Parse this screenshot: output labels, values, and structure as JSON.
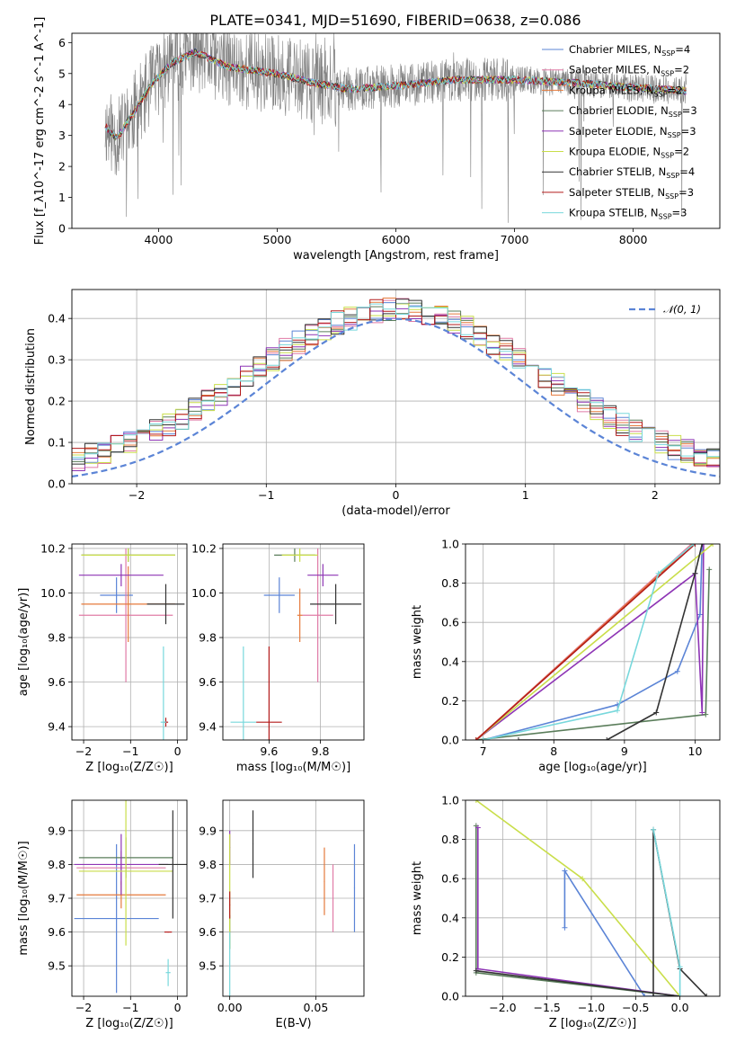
{
  "figure": {
    "title": "PLATE=0341, MJD=51690, FIBERID=0638, z=0.086",
    "colors": {
      "Chabrier MILES": "#5b84d6",
      "Salpeter MILES": "#e07ba6",
      "Kroupa MILES": "#e57a3c",
      "Chabrier ELODIE": "#5a7d5a",
      "Salpeter ELODIE": "#8e35b5",
      "Kroupa ELODIE": "#c9de4a",
      "Chabrier STELIB": "#333333",
      "Salpeter STELIB": "#b31b1b",
      "Kroupa STELIB": "#78d8dc",
      "data": "#808080"
    }
  },
  "chart_data": [
    {
      "type": "line",
      "id": "spectrum",
      "xlabel": "wavelength [Angstrom, rest frame]",
      "ylabel": "Flux [f_λ10^-17 erg cm^-2 s^-1 A^-1]",
      "xlim": [
        3270,
        8730
      ],
      "ylim": [
        0,
        6.3
      ],
      "xticks": [
        4000,
        5000,
        6000,
        7000,
        8000
      ],
      "yticks": [
        0,
        1,
        2,
        3,
        4,
        5,
        6
      ],
      "legend": [
        {
          "name": "Chabrier MILES",
          "nssp": 4
        },
        {
          "name": "Salpeter MILES",
          "nssp": 2
        },
        {
          "name": "Kroupa MILES",
          "nssp": 2
        },
        {
          "name": "Chabrier ELODIE",
          "nssp": 3
        },
        {
          "name": "Salpeter ELODIE",
          "nssp": 3
        },
        {
          "name": "Kroupa ELODIE",
          "nssp": 2
        },
        {
          "name": "Chabrier STELIB",
          "nssp": 4
        },
        {
          "name": "Salpeter STELIB",
          "nssp": 3
        },
        {
          "name": "Kroupa STELIB",
          "nssp": 3
        }
      ],
      "legend_loc": "upper right",
      "continuum": {
        "x": [
          3550,
          3650,
          3800,
          3950,
          4100,
          4300,
          4600,
          5000,
          5300,
          5600,
          6000,
          6500,
          7000,
          7500,
          8000,
          8400,
          8500
        ],
        "y": [
          3.3,
          2.9,
          3.8,
          4.7,
          5.3,
          5.7,
          5.2,
          5.0,
          4.7,
          4.5,
          4.6,
          4.8,
          4.8,
          4.7,
          4.55,
          4.45,
          4.4
        ]
      }
    },
    {
      "type": "line",
      "id": "residuals",
      "xlabel": "(data-model)/error",
      "ylabel": "Normed distribution",
      "xlim": [
        -2.5,
        2.5
      ],
      "ylim": [
        0,
        0.47
      ],
      "xticks": [
        -2,
        -1,
        0,
        1,
        2
      ],
      "yticks": [
        0.0,
        0.1,
        0.2,
        0.3,
        0.4
      ],
      "legend": [
        "𝒩(0, 1)"
      ],
      "legend_loc": "upper right",
      "gaussian": {
        "mean": 0,
        "sigma": 1
      }
    },
    {
      "type": "scatter",
      "id": "age_vs_Z",
      "xlabel": "Z [log₁₀(Z/Z☉)]",
      "ylabel": "age  [log₁₀(age/yr)]",
      "xlim": [
        -2.25,
        0.2
      ],
      "ylim": [
        9.34,
        10.22
      ],
      "xticks": [
        -2,
        -1,
        0
      ],
      "yticks": [
        9.4,
        9.6,
        9.8,
        10.0,
        10.2
      ],
      "points": [
        {
          "model": "Chabrier MILES",
          "x": -1.3,
          "xerr": 0.35,
          "y": 9.99,
          "yerr": 0.08
        },
        {
          "model": "Salpeter MILES",
          "x": -1.1,
          "xerr": 1.0,
          "y": 9.9,
          "yerr": 0.3
        },
        {
          "model": "Kroupa MILES",
          "x": -1.05,
          "xerr": 1.0,
          "y": 9.95,
          "yerr": 0.17
        },
        {
          "model": "Chabrier ELODIE",
          "x": -1.05,
          "xerr": 1.0,
          "y": 10.17,
          "yerr": 0.03
        },
        {
          "model": "Salpeter ELODIE",
          "x": -1.2,
          "xerr": 0.9,
          "y": 10.08,
          "yerr": 0.05
        },
        {
          "model": "Kroupa ELODIE",
          "x": -1.05,
          "xerr": 1.0,
          "y": 10.17,
          "yerr": 0.03
        },
        {
          "model": "Chabrier STELIB",
          "x": -0.25,
          "xerr": 0.4,
          "y": 9.95,
          "yerr": 0.09
        },
        {
          "model": "Salpeter STELIB",
          "x": -0.25,
          "xerr": 0.05,
          "y": 9.42,
          "yerr": 0.02
        },
        {
          "model": "Kroupa STELIB",
          "x": -0.3,
          "xerr": 0.06,
          "y": 9.42,
          "yerr": 0.34
        }
      ]
    },
    {
      "type": "scatter",
      "id": "age_vs_mass",
      "xlabel": "mass [log₁₀(M/M☉)]",
      "ylabel": "",
      "xlim": [
        9.42,
        9.97
      ],
      "ylim": [
        9.34,
        10.22
      ],
      "xticks": [
        9.6,
        9.8
      ],
      "yticks": [
        9.4,
        9.6,
        9.8,
        10.0,
        10.2
      ],
      "points": [
        {
          "model": "Chabrier MILES",
          "x": 9.64,
          "xerr": 0.06,
          "y": 9.99,
          "yerr": 0.08
        },
        {
          "model": "Salpeter MILES",
          "x": 9.79,
          "xerr": 0.06,
          "y": 9.9,
          "yerr": 0.3
        },
        {
          "model": "Kroupa MILES",
          "x": 9.72,
          "xerr": 0.01,
          "y": 9.9,
          "yerr": 0.12
        },
        {
          "model": "Chabrier ELODIE",
          "x": 9.7,
          "xerr": 0.08,
          "y": 10.17,
          "yerr": 0.03
        },
        {
          "model": "Salpeter ELODIE",
          "x": 9.81,
          "xerr": 0.06,
          "y": 10.08,
          "yerr": 0.05
        },
        {
          "model": "Kroupa ELODIE",
          "x": 9.72,
          "xerr": 0.07,
          "y": 10.17,
          "yerr": 0.03
        },
        {
          "model": "Chabrier STELIB",
          "x": 9.86,
          "xerr": 0.1,
          "y": 9.95,
          "yerr": 0.09
        },
        {
          "model": "Salpeter STELIB",
          "x": 9.6,
          "xerr": 0.05,
          "y": 9.42,
          "yerr": 0.34
        },
        {
          "model": "Kroupa STELIB",
          "x": 9.5,
          "xerr": 0.05,
          "y": 9.42,
          "yerr": 0.34
        }
      ]
    },
    {
      "type": "line",
      "id": "cumulative_mass_weight_age",
      "xlabel": "age  [log₁₀(age/yr)]",
      "ylabel": "mass weight",
      "xlim": [
        6.75,
        10.35
      ],
      "ylim": [
        0,
        1
      ],
      "xticks": [
        7,
        8,
        9,
        10
      ],
      "yticks": [
        0.0,
        0.2,
        0.4,
        0.6,
        0.8,
        1.0
      ],
      "series": [
        {
          "name": "Chabrier MILES",
          "x": [
            7.0,
            8.9,
            9.75,
            10.07,
            10.1
          ],
          "y": [
            0.0,
            0.18,
            0.35,
            0.64,
            1.0
          ]
        },
        {
          "name": "Salpeter MILES",
          "x": [
            6.9,
            9.95
          ],
          "y": [
            0.0,
            1.0
          ]
        },
        {
          "name": "Kroupa MILES",
          "x": [
            6.9,
            9.97
          ],
          "y": [
            0.0,
            1.0
          ]
        },
        {
          "name": "Chabrier ELODIE",
          "x": [
            6.9,
            10.15,
            10.2
          ],
          "y": [
            0.0,
            0.13,
            0.87
          ]
        },
        {
          "name": "Salpeter ELODIE",
          "x": [
            6.9,
            10.0,
            10.1,
            10.12
          ],
          "y": [
            0.0,
            0.85,
            0.14,
            1.0
          ]
        },
        {
          "name": "Kroupa ELODIE",
          "x": [
            6.9,
            10.25
          ],
          "y": [
            0.0,
            1.0
          ]
        },
        {
          "name": "Chabrier STELIB",
          "x": [
            7.5,
            8.75,
            9.45,
            10.0,
            10.1
          ],
          "y": [
            0.0,
            0.0,
            0.14,
            0.85,
            1.0
          ]
        },
        {
          "name": "Salpeter STELIB",
          "x": [
            6.9,
            10.0
          ],
          "y": [
            0.0,
            1.0
          ]
        },
        {
          "name": "Kroupa STELIB",
          "x": [
            7.0,
            8.9,
            9.48,
            9.98
          ],
          "y": [
            0.0,
            0.15,
            0.85,
            1.0
          ]
        }
      ]
    },
    {
      "type": "scatter",
      "id": "mass_vs_Z",
      "xlabel": "Z [log₁₀(Z/Z☉)]",
      "ylabel": "mass [log₁₀(M/M☉)]",
      "xlim": [
        -2.25,
        0.2
      ],
      "ylim": [
        9.41,
        9.99
      ],
      "xticks": [
        -2,
        -1,
        0
      ],
      "yticks": [
        9.5,
        9.6,
        9.7,
        9.8,
        9.9
      ],
      "points": [
        {
          "model": "Chabrier MILES",
          "x": -1.3,
          "xerr": 0.9,
          "y": 9.64,
          "yerr": 0.22
        },
        {
          "model": "Salpeter MILES",
          "x": -1.2,
          "xerr": 0.95,
          "y": 9.79,
          "yerr": 0.05
        },
        {
          "model": "Kroupa MILES",
          "x": -1.2,
          "xerr": 0.95,
          "y": 9.71,
          "yerr": 0.04
        },
        {
          "model": "Chabrier ELODIE",
          "x": -1.1,
          "xerr": 1.0,
          "y": 9.82,
          "yerr": 0.06
        },
        {
          "model": "Salpeter ELODIE",
          "x": -1.2,
          "xerr": 1.0,
          "y": 9.8,
          "yerr": 0.09
        },
        {
          "model": "Kroupa ELODIE",
          "x": -1.1,
          "xerr": 1.0,
          "y": 9.78,
          "yerr": 0.22
        },
        {
          "model": "Chabrier STELIB",
          "x": -0.1,
          "xerr": 0.3,
          "y": 9.8,
          "yerr": 0.16
        },
        {
          "model": "Salpeter STELIB",
          "x": -0.2,
          "xerr": 0.08,
          "y": 9.6,
          "yerr": 0.0
        },
        {
          "model": "Kroupa STELIB",
          "x": -0.2,
          "xerr": 0.05,
          "y": 9.48,
          "yerr": 0.04
        }
      ]
    },
    {
      "type": "scatter",
      "id": "mass_vs_ebv",
      "xlabel": "E(B-V)",
      "ylabel": "",
      "xlim": [
        -0.004,
        0.078
      ],
      "ylim": [
        9.41,
        9.99
      ],
      "xticks": [
        0.0,
        0.05
      ],
      "yticks": [
        9.5,
        9.6,
        9.7,
        9.8,
        9.9
      ],
      "points": [
        {
          "model": "Chabrier MILES",
          "x": 0.0725,
          "y": 9.73,
          "yerr": 0.13
        },
        {
          "model": "Salpeter MILES",
          "x": 0.06,
          "y": 9.7,
          "yerr": 0.1
        },
        {
          "model": "Kroupa MILES",
          "x": 0.055,
          "y": 9.75,
          "yerr": 0.1
        },
        {
          "model": "Chabrier ELODIE",
          "x": 0.0,
          "y": 9.6,
          "yerr": 0.05
        },
        {
          "model": "Salpeter ELODIE",
          "x": 0.0,
          "y": 9.85,
          "yerr": 0.05
        },
        {
          "model": "Kroupa ELODIE",
          "x": 0.0,
          "y": 9.72,
          "yerr": 0.17
        },
        {
          "model": "Chabrier STELIB",
          "x": 0.0135,
          "y": 9.86,
          "yerr": 0.1
        },
        {
          "model": "Salpeter STELIB",
          "x": 0.0,
          "y": 9.68,
          "yerr": 0.04
        },
        {
          "model": "Kroupa STELIB",
          "x": 0.0,
          "y": 9.5,
          "yerr": 0.1
        }
      ]
    },
    {
      "type": "line",
      "id": "cumulative_mass_weight_Z",
      "xlabel": "Z [log₁₀(Z/Z☉)]",
      "ylabel": "mass weight",
      "xlim": [
        -2.42,
        0.45
      ],
      "ylim": [
        0,
        1
      ],
      "xticks": [
        -2.0,
        -1.5,
        -1.0,
        -0.5,
        0.0
      ],
      "yticks": [
        0.0,
        0.2,
        0.4,
        0.6,
        0.8,
        1.0
      ],
      "series": [
        {
          "name": "Chabrier MILES",
          "x": [
            -1.3,
            -1.3,
            -0.4,
            0.0
          ],
          "y": [
            0.35,
            0.64,
            0.0,
            0.0
          ]
        },
        {
          "name": "Chabrier ELODIE",
          "x": [
            -2.3,
            -2.3,
            0.0
          ],
          "y": [
            0.87,
            0.12,
            0.0
          ]
        },
        {
          "name": "Salpeter ELODIE",
          "x": [
            -2.28,
            -2.28,
            0.0
          ],
          "y": [
            0.86,
            0.14,
            0.0
          ]
        },
        {
          "name": "Kroupa ELODIE",
          "x": [
            -2.3,
            -1.1,
            0.0
          ],
          "y": [
            1.0,
            0.6,
            0.0
          ]
        },
        {
          "name": "Chabrier STELIB",
          "x": [
            -2.3,
            0.0,
            -0.3,
            -0.3,
            0.0,
            0.3
          ],
          "y": [
            0.13,
            0.0,
            0.0,
            0.85,
            0.14,
            0.0
          ]
        },
        {
          "name": "Kroupa STELIB",
          "x": [
            -0.3,
            0.0,
            0.0
          ],
          "y": [
            0.85,
            0.15,
            0.0
          ]
        }
      ]
    }
  ]
}
